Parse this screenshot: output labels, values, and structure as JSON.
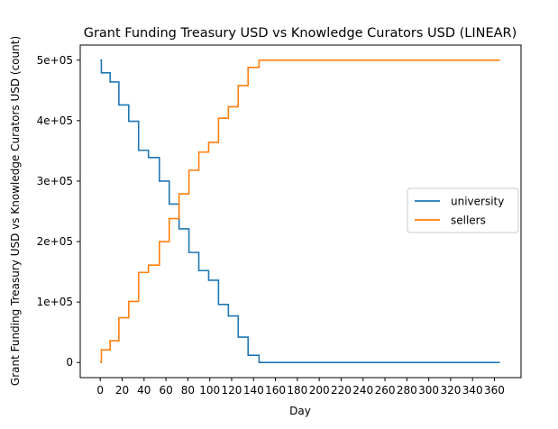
{
  "chart_data": {
    "type": "line",
    "drawstyle": "steps-post",
    "title": "Grant Funding Treasury USD vs Knowledge Curators USD (LINEAR)",
    "xlabel": "Day",
    "ylabel": "Grant Funding Treasury USD vs Knowledge Curators USD (count)",
    "xlim": [
      -18.3,
      384.3
    ],
    "ylim": [
      -25000,
      525000
    ],
    "x_ticks": [
      0,
      20,
      40,
      60,
      80,
      100,
      120,
      140,
      160,
      180,
      200,
      220,
      240,
      260,
      280,
      300,
      320,
      340,
      360
    ],
    "x_tick_labels": [
      "0",
      "20",
      "40",
      "60",
      "80",
      "100",
      "120",
      "140",
      "160",
      "180",
      "200",
      "220",
      "240",
      "260",
      "280",
      "300",
      "320",
      "340",
      "360"
    ],
    "y_ticks": [
      0,
      100000,
      200000,
      300000,
      400000,
      500000
    ],
    "y_tick_labels": [
      "0",
      "1e+05",
      "2e+05",
      "3e+05",
      "4e+05",
      "5e+05"
    ],
    "grid": false,
    "legend_position": "center-right",
    "series": [
      {
        "name": "university",
        "color": "#1f77b4",
        "x": [
          0,
          1,
          9,
          17,
          26,
          35,
          44,
          54,
          63,
          72,
          81,
          90,
          99,
          108,
          117,
          126,
          135,
          145,
          365
        ],
        "values": [
          500000,
          479000,
          464000,
          426000,
          399000,
          351000,
          339000,
          300000,
          262000,
          221000,
          182000,
          152000,
          136000,
          96000,
          77000,
          42000,
          12000,
          0,
          0
        ]
      },
      {
        "name": "sellers",
        "color": "#ff7f0e",
        "x": [
          0,
          1,
          9,
          17,
          26,
          35,
          44,
          54,
          63,
          72,
          81,
          90,
          99,
          108,
          117,
          126,
          135,
          145,
          365
        ],
        "values": [
          0,
          21000,
          36000,
          74000,
          101000,
          149000,
          161000,
          200000,
          238000,
          279000,
          318000,
          348000,
          364000,
          404000,
          423000,
          458000,
          488000,
          500000,
          500000
        ]
      }
    ]
  }
}
